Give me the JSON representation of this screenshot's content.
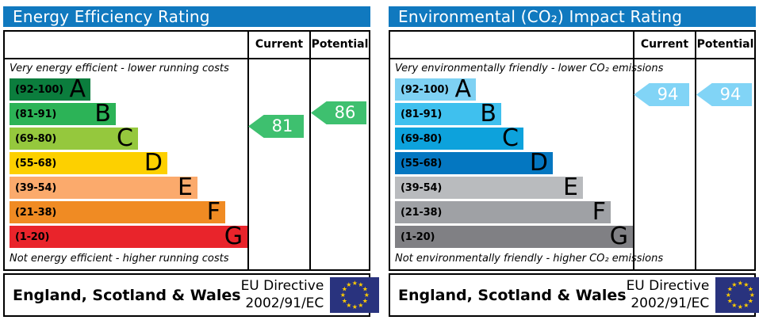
{
  "colors": {
    "header_bg": "#1079bf",
    "header_text": "#ffffff",
    "border": "#000000",
    "eu_flag_bg": "#29337e",
    "eu_star": "#ffcc00"
  },
  "chart_data": [
    {
      "type": "bar",
      "id": "energy-efficiency-rating",
      "title": "Energy Efficiency Rating",
      "columns": {
        "current_label": "Current",
        "potential_label": "Potential"
      },
      "top_caption": "Very energy efficient - lower running costs",
      "bottom_caption": "Not energy efficient - higher running costs",
      "bands": [
        {
          "range_label": "(92-100)",
          "letter": "A",
          "min": 92,
          "max": 100,
          "color": "#0b7d3d",
          "width_px": "102px"
        },
        {
          "range_label": "(81-91)",
          "letter": "B",
          "min": 81,
          "max": 91,
          "color": "#2cb357",
          "width_px": "134px"
        },
        {
          "range_label": "(69-80)",
          "letter": "C",
          "min": 69,
          "max": 80,
          "color": "#95c83d",
          "width_px": "162px"
        },
        {
          "range_label": "(55-68)",
          "letter": "D",
          "min": 55,
          "max": 68,
          "color": "#fdd000",
          "width_px": "199px"
        },
        {
          "range_label": "(39-54)",
          "letter": "E",
          "min": 39,
          "max": 54,
          "color": "#fbaa6c",
          "width_px": "237px"
        },
        {
          "range_label": "(21-38)",
          "letter": "F",
          "min": 21,
          "max": 38,
          "color": "#f08b23",
          "width_px": "272px"
        },
        {
          "range_label": "(1-20)",
          "letter": "G",
          "min": 1,
          "max": 20,
          "color": "#e9242b",
          "width_px": "300px"
        }
      ],
      "current": {
        "value": 81,
        "band": "B",
        "color": "#3ec06f"
      },
      "potential": {
        "value": 86,
        "band": "B",
        "color": "#3ec06f"
      },
      "footer": {
        "region": "England, Scotland & Wales",
        "directive_line1": "EU Directive",
        "directive_line2": "2002/91/EC"
      }
    },
    {
      "type": "bar",
      "id": "environmental-co2-impact-rating",
      "title": "Environmental (CO₂) Impact Rating",
      "columns": {
        "current_label": "Current",
        "potential_label": "Potential"
      },
      "top_caption": "Very environmentally friendly - lower CO₂ emissions",
      "bottom_caption": "Not environmentally friendly - higher CO₂ emissions",
      "bands": [
        {
          "range_label": "(92-100)",
          "letter": "A",
          "min": 92,
          "max": 100,
          "color": "#7ed1f3",
          "width_px": "102px"
        },
        {
          "range_label": "(81-91)",
          "letter": "B",
          "min": 81,
          "max": 91,
          "color": "#3fc0ee",
          "width_px": "134px"
        },
        {
          "range_label": "(69-80)",
          "letter": "C",
          "min": 69,
          "max": 80,
          "color": "#0da2dc",
          "width_px": "162px"
        },
        {
          "range_label": "(55-68)",
          "letter": "D",
          "min": 55,
          "max": 68,
          "color": "#0477c1",
          "width_px": "199px"
        },
        {
          "range_label": "(39-54)",
          "letter": "E",
          "min": 39,
          "max": 54,
          "color": "#b9bbbe",
          "width_px": "237px"
        },
        {
          "range_label": "(21-38)",
          "letter": "F",
          "min": 21,
          "max": 38,
          "color": "#9fa1a5",
          "width_px": "272px"
        },
        {
          "range_label": "(1-20)",
          "letter": "G",
          "min": 1,
          "max": 20,
          "color": "#808084",
          "width_px": "300px"
        }
      ],
      "current": {
        "value": 94,
        "band": "A",
        "color": "#81d4f6"
      },
      "potential": {
        "value": 94,
        "band": "A",
        "color": "#81d4f6"
      },
      "footer": {
        "region": "England, Scotland & Wales",
        "directive_line1": "EU Directive",
        "directive_line2": "2002/91/EC"
      }
    }
  ]
}
